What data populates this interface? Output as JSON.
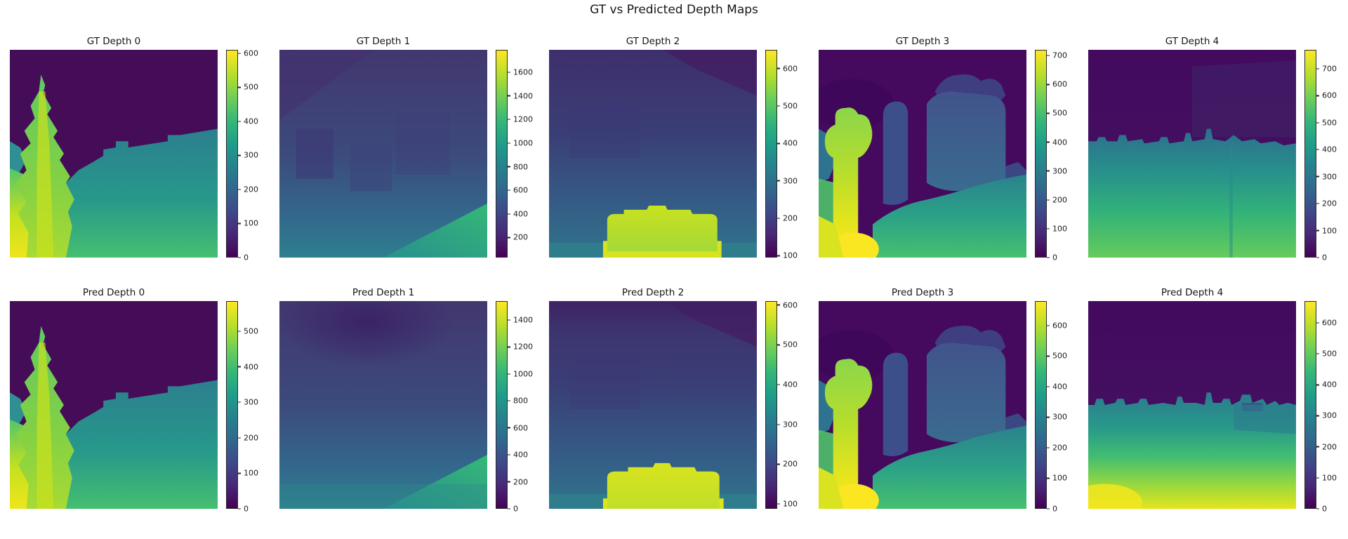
{
  "figure": {
    "title": "GT vs Predicted Depth Maps",
    "background": "#ffffff",
    "text_color": "#151515",
    "colormap": "viridis",
    "viridis_stops": [
      "#440154",
      "#482878",
      "#3e4989",
      "#31688e",
      "#26828e",
      "#1f9e89",
      "#35b779",
      "#6ece58",
      "#b5de2b",
      "#fde725"
    ]
  },
  "chart_data": [
    {
      "type": "heatmap",
      "row": "GT",
      "index": 0,
      "title": "GT Depth 0",
      "colormap": "viridis",
      "colorbar_ticks": [
        0,
        100,
        200,
        300,
        400,
        500,
        600
      ],
      "colorbar_range": [
        0,
        610
      ]
    },
    {
      "type": "heatmap",
      "row": "GT",
      "index": 1,
      "title": "GT Depth 1",
      "colormap": "viridis",
      "colorbar_ticks": [
        200,
        400,
        600,
        800,
        1000,
        1200,
        1400,
        1600
      ],
      "colorbar_range": [
        30,
        1790
      ]
    },
    {
      "type": "heatmap",
      "row": "GT",
      "index": 2,
      "title": "GT Depth 2",
      "colormap": "viridis",
      "colorbar_ticks": [
        100,
        200,
        300,
        400,
        500,
        600
      ],
      "colorbar_range": [
        95,
        650
      ]
    },
    {
      "type": "heatmap",
      "row": "GT",
      "index": 3,
      "title": "GT Depth 3",
      "colormap": "viridis",
      "colorbar_ticks": [
        0,
        100,
        200,
        300,
        400,
        500,
        600,
        700
      ],
      "colorbar_range": [
        0,
        720
      ]
    },
    {
      "type": "heatmap",
      "row": "GT",
      "index": 4,
      "title": "GT Depth 4",
      "colormap": "viridis",
      "colorbar_ticks": [
        0,
        100,
        200,
        300,
        400,
        500,
        600,
        700
      ],
      "colorbar_range": [
        0,
        770
      ]
    },
    {
      "type": "heatmap",
      "row": "Pred",
      "index": 0,
      "title": "Pred Depth 0",
      "colormap": "viridis",
      "colorbar_ticks": [
        0,
        100,
        200,
        300,
        400,
        500
      ],
      "colorbar_range": [
        0,
        585
      ]
    },
    {
      "type": "heatmap",
      "row": "Pred",
      "index": 1,
      "title": "Pred Depth 1",
      "colormap": "viridis",
      "colorbar_ticks": [
        0,
        200,
        400,
        600,
        800,
        1000,
        1200,
        1400
      ],
      "colorbar_range": [
        0,
        1540
      ]
    },
    {
      "type": "heatmap",
      "row": "Pred",
      "index": 2,
      "title": "Pred Depth 2",
      "colormap": "viridis",
      "colorbar_ticks": [
        100,
        200,
        300,
        400,
        500,
        600
      ],
      "colorbar_range": [
        88,
        610
      ]
    },
    {
      "type": "heatmap",
      "row": "Pred",
      "index": 3,
      "title": "Pred Depth 3",
      "colormap": "viridis",
      "colorbar_ticks": [
        0,
        100,
        200,
        300,
        400,
        500,
        600
      ],
      "colorbar_range": [
        0,
        680
      ]
    },
    {
      "type": "heatmap",
      "row": "Pred",
      "index": 4,
      "title": "Pred Depth 4",
      "colormap": "viridis",
      "colorbar_ticks": [
        0,
        100,
        200,
        300,
        400,
        500,
        600
      ],
      "colorbar_range": [
        0,
        670
      ]
    }
  ]
}
